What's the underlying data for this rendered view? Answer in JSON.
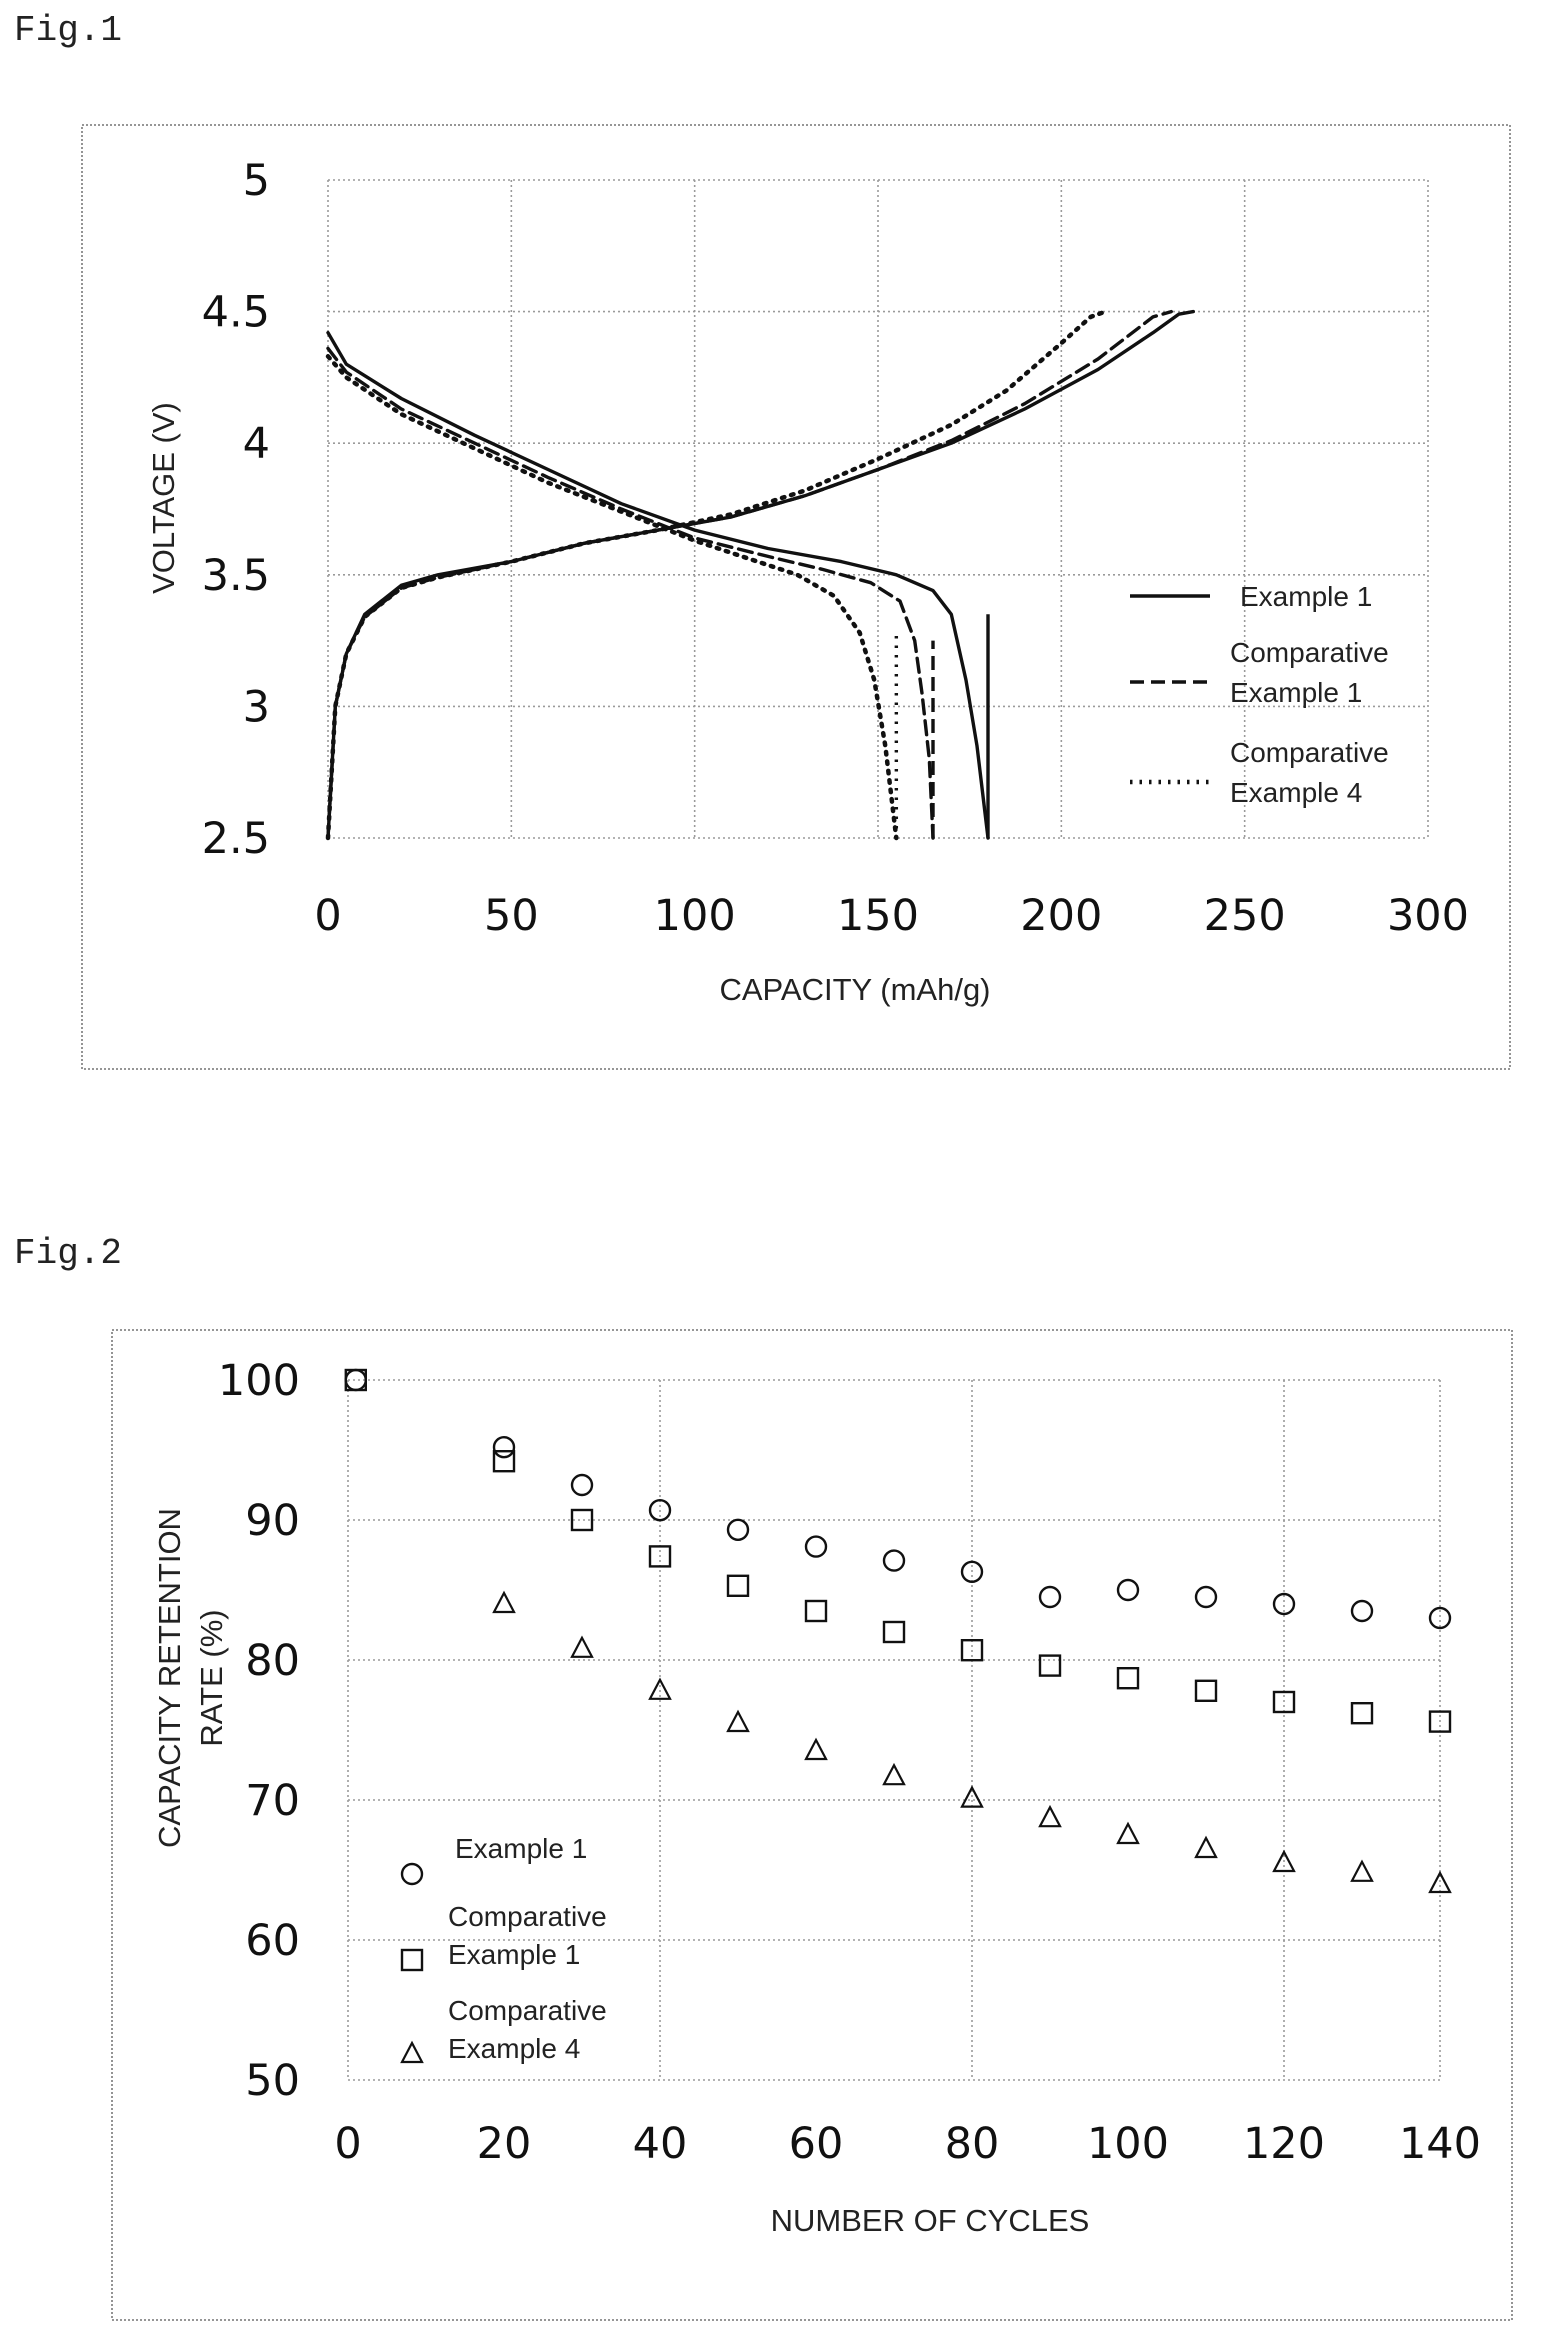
{
  "figures": [
    {
      "label": "Fig.1"
    },
    {
      "label": "Fig.2"
    }
  ],
  "chart_data": [
    {
      "type": "line",
      "xlabel": "CAPACITY (mAh/g)",
      "ylabel": "VOLTAGE (V)",
      "xlim": [
        0,
        300
      ],
      "ylim": [
        2.5,
        5
      ],
      "xticks": [
        "0",
        "50",
        "100",
        "150",
        "200",
        "250",
        "300"
      ],
      "yticks": [
        "2.5",
        "3",
        "3.5",
        "4",
        "4.5",
        "5"
      ],
      "grid": true,
      "legend_position": "lower-right",
      "series": [
        {
          "name": "Example 1",
          "style": "solid",
          "color": "#111111",
          "charge": [
            [
              0,
              2.5
            ],
            [
              2,
              3.0
            ],
            [
              5,
              3.2
            ],
            [
              10,
              3.35
            ],
            [
              20,
              3.46
            ],
            [
              30,
              3.5
            ],
            [
              50,
              3.55
            ],
            [
              70,
              3.62
            ],
            [
              90,
              3.67
            ],
            [
              110,
              3.72
            ],
            [
              130,
              3.8
            ],
            [
              150,
              3.9
            ],
            [
              170,
              4.0
            ],
            [
              190,
              4.13
            ],
            [
              210,
              4.28
            ],
            [
              225,
              4.42
            ],
            [
              232,
              4.49
            ],
            [
              236,
              4.5
            ]
          ],
          "discharge": [
            [
              0,
              4.42
            ],
            [
              5,
              4.3
            ],
            [
              20,
              4.17
            ],
            [
              40,
              4.03
            ],
            [
              60,
              3.9
            ],
            [
              80,
              3.77
            ],
            [
              100,
              3.67
            ],
            [
              120,
              3.6
            ],
            [
              140,
              3.55
            ],
            [
              155,
              3.5
            ],
            [
              165,
              3.44
            ],
            [
              170,
              3.35
            ],
            [
              174,
              3.1
            ],
            [
              177,
              2.85
            ],
            [
              180,
              2.5
            ]
          ]
        },
        {
          "name": "Comparative Example 1",
          "style": "dashed",
          "color": "#111111",
          "charge": [
            [
              0,
              2.5
            ],
            [
              2,
              3.0
            ],
            [
              5,
              3.2
            ],
            [
              10,
              3.34
            ],
            [
              20,
              3.45
            ],
            [
              30,
              3.49
            ],
            [
              50,
              3.55
            ],
            [
              70,
              3.62
            ],
            [
              90,
              3.67
            ],
            [
              110,
              3.72
            ],
            [
              130,
              3.8
            ],
            [
              150,
              3.9
            ],
            [
              170,
              4.01
            ],
            [
              190,
              4.15
            ],
            [
              210,
              4.32
            ],
            [
              225,
              4.48
            ],
            [
              230,
              4.5
            ]
          ],
          "discharge": [
            [
              0,
              4.36
            ],
            [
              5,
              4.27
            ],
            [
              20,
              4.13
            ],
            [
              40,
              4.0
            ],
            [
              60,
              3.87
            ],
            [
              80,
              3.75
            ],
            [
              100,
              3.64
            ],
            [
              120,
              3.57
            ],
            [
              135,
              3.52
            ],
            [
              148,
              3.47
            ],
            [
              156,
              3.4
            ],
            [
              160,
              3.25
            ],
            [
              162,
              3.05
            ],
            [
              164,
              2.8
            ],
            [
              165,
              2.5
            ]
          ]
        },
        {
          "name": "Comparative Example 4",
          "style": "dotted",
          "color": "#111111",
          "charge": [
            [
              0,
              2.5
            ],
            [
              2,
              3.0
            ],
            [
              5,
              3.2
            ],
            [
              10,
              3.34
            ],
            [
              20,
              3.45
            ],
            [
              30,
              3.49
            ],
            [
              50,
              3.55
            ],
            [
              70,
              3.62
            ],
            [
              90,
              3.67
            ],
            [
              110,
              3.73
            ],
            [
              130,
              3.82
            ],
            [
              150,
              3.94
            ],
            [
              170,
              4.07
            ],
            [
              185,
              4.2
            ],
            [
              200,
              4.38
            ],
            [
              208,
              4.48
            ],
            [
              212,
              4.5
            ]
          ],
          "discharge": [
            [
              0,
              4.33
            ],
            [
              5,
              4.25
            ],
            [
              20,
              4.11
            ],
            [
              40,
              3.98
            ],
            [
              60,
              3.85
            ],
            [
              80,
              3.74
            ],
            [
              100,
              3.63
            ],
            [
              115,
              3.56
            ],
            [
              128,
              3.5
            ],
            [
              138,
              3.42
            ],
            [
              145,
              3.28
            ],
            [
              149,
              3.1
            ],
            [
              152,
              2.85
            ],
            [
              155,
              2.5
            ]
          ]
        }
      ]
    },
    {
      "type": "scatter",
      "xlabel": "NUMBER OF CYCLES",
      "ylabel_lines": [
        "CAPACITY RETENTION",
        "RATE (%)"
      ],
      "xlim": [
        0,
        140
      ],
      "ylim": [
        50,
        100
      ],
      "xticks": [
        "0",
        "20",
        "40",
        "60",
        "80",
        "100",
        "120",
        "140"
      ],
      "yticks": [
        "50",
        "60",
        "70",
        "80",
        "90",
        "100"
      ],
      "grid": true,
      "legend_position": "lower-left",
      "series": [
        {
          "name": "Example 1",
          "marker": "circle",
          "x": [
            1,
            20,
            30,
            40,
            50,
            60,
            70,
            80,
            90,
            100,
            110,
            120,
            130,
            140
          ],
          "y": [
            100,
            95.2,
            92.5,
            90.7,
            89.3,
            88.1,
            87.1,
            86.3,
            84.5,
            85.0,
            84.5,
            84.0,
            83.5,
            83.0
          ]
        },
        {
          "name": "Comparative Example 1",
          "marker": "square",
          "x": [
            1,
            20,
            30,
            40,
            50,
            60,
            70,
            80,
            90,
            100,
            110,
            120,
            130,
            140
          ],
          "y": [
            100,
            94.2,
            90.0,
            87.4,
            85.3,
            83.5,
            82.0,
            80.7,
            79.6,
            78.7,
            77.8,
            77.0,
            76.2,
            75.6
          ]
        },
        {
          "name": "Comparative Example 4",
          "marker": "triangle",
          "x": [
            20,
            30,
            40,
            50,
            60,
            70,
            80,
            90,
            100,
            110,
            120,
            130,
            140
          ],
          "y": [
            84.0,
            80.8,
            77.8,
            75.5,
            73.5,
            71.7,
            70.1,
            68.7,
            67.5,
            66.5,
            65.5,
            64.8,
            64.0
          ]
        }
      ]
    }
  ]
}
